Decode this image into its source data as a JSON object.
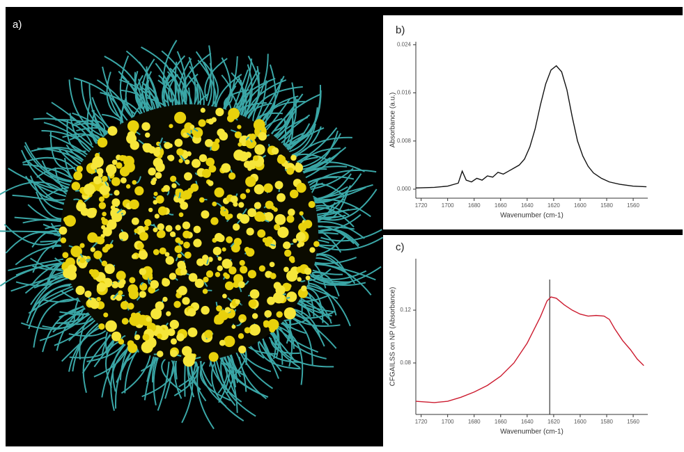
{
  "image_panel": {
    "label": "a)"
  },
  "chart_data": [
    {
      "type": "line",
      "panel_label": "b)",
      "x_label": "Wavenumber (cm-1)",
      "y_label": "Absorbance (a.u.)",
      "xlim": [
        1724,
        1549
      ],
      "ylim": [
        -0.0015,
        0.0245
      ],
      "xticks": [
        1720,
        1700,
        1680,
        1660,
        1640,
        1620,
        1600,
        1580,
        1560
      ],
      "yticks": [
        {
          "value": 0,
          "label": "0.000"
        },
        {
          "value": 0.008,
          "label": "0.008"
        },
        {
          "value": 0.016,
          "label": "0.016"
        },
        {
          "value": 0.024,
          "label": "0.024"
        }
      ],
      "series": [
        {
          "color": "#111111",
          "x": [
            1724,
            1710,
            1700,
            1692,
            1689,
            1686,
            1682,
            1678,
            1674,
            1670,
            1666,
            1662,
            1658,
            1654,
            1650,
            1646,
            1642,
            1638,
            1634,
            1630,
            1626,
            1622,
            1618,
            1614,
            1610,
            1606,
            1602,
            1598,
            1594,
            1590,
            1584,
            1578,
            1570,
            1560,
            1550
          ],
          "values": [
            0.0002,
            0.0003,
            0.0005,
            0.001,
            0.003,
            0.0015,
            0.0012,
            0.0018,
            0.0015,
            0.0022,
            0.002,
            0.0028,
            0.0025,
            0.003,
            0.0035,
            0.004,
            0.005,
            0.007,
            0.01,
            0.014,
            0.0175,
            0.0198,
            0.0205,
            0.0195,
            0.0165,
            0.012,
            0.008,
            0.0055,
            0.0038,
            0.0027,
            0.0018,
            0.0012,
            0.0008,
            0.0005,
            0.0004
          ]
        }
      ]
    },
    {
      "type": "line",
      "panel_label": "c)",
      "x_label": "Wavenumber (cm-1)",
      "y_label": "CFGAILSS on NP (Absorbance)",
      "xlim": [
        1724,
        1549
      ],
      "ylim": [
        0.041,
        0.159
      ],
      "xticks": [
        1720,
        1700,
        1680,
        1660,
        1640,
        1620,
        1600,
        1580,
        1560
      ],
      "yticks": [
        0.08,
        0.12
      ],
      "marker_x": 1623,
      "series": [
        {
          "color": "#cc1b2f",
          "x": [
            1724,
            1710,
            1700,
            1690,
            1680,
            1670,
            1660,
            1650,
            1640,
            1630,
            1625,
            1622,
            1618,
            1612,
            1606,
            1600,
            1594,
            1588,
            1582,
            1578,
            1574,
            1568,
            1562,
            1557,
            1552
          ],
          "values": [
            0.051,
            0.05,
            0.051,
            0.054,
            0.058,
            0.063,
            0.07,
            0.08,
            0.095,
            0.115,
            0.127,
            0.13,
            0.129,
            0.124,
            0.12,
            0.117,
            0.1155,
            0.116,
            0.1155,
            0.113,
            0.106,
            0.097,
            0.09,
            0.083,
            0.078
          ]
        }
      ]
    }
  ]
}
